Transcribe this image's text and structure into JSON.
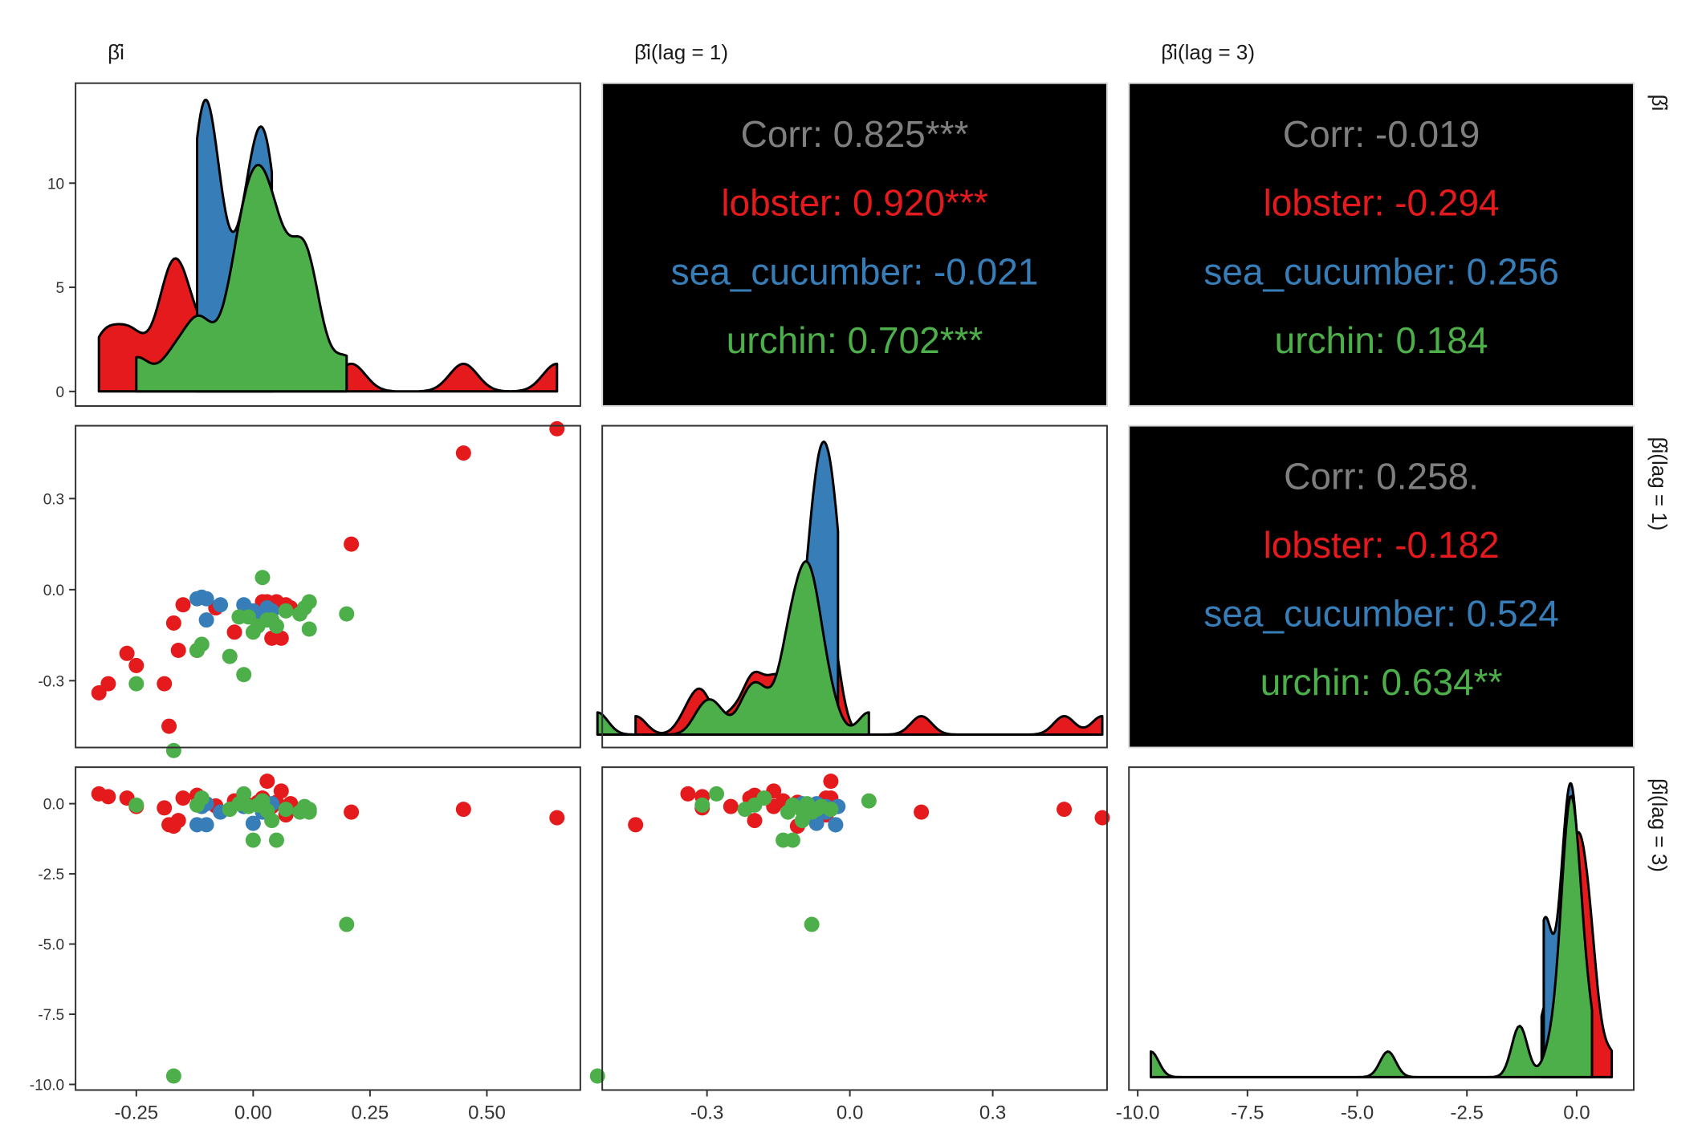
{
  "chart_data": {
    "type": "pairs",
    "groups": [
      {
        "name": "lobster",
        "color": "#E41A1C"
      },
      {
        "name": "sea_cucumber",
        "color": "#377EB8"
      },
      {
        "name": "urchin",
        "color": "#4DAF4A"
      }
    ],
    "variables": [
      {
        "label": "β̂i",
        "lim": [
          -0.38,
          0.7
        ],
        "ticks": [
          "-0.25",
          "0.00",
          "0.25",
          "0.50"
        ],
        "tick_values": [
          -0.25,
          0,
          0.25,
          0.5
        ]
      },
      {
        "label": "β̂i(lag = 1)",
        "lim": [
          -0.52,
          0.54
        ],
        "ticks": [
          "-0.3",
          "0.0",
          "0.3"
        ],
        "tick_values": [
          -0.3,
          0,
          0.3
        ]
      },
      {
        "label": "β̂i(lag = 3)",
        "lim": [
          -10.2,
          1.3
        ],
        "ticks": [
          "-10.0",
          "-7.5",
          "-5.0",
          "-2.5",
          "0.0"
        ],
        "tick_values": [
          -10,
          -7.5,
          -5,
          -2.5,
          0
        ]
      }
    ],
    "density_y": {
      "lim": [
        -0.7,
        14.8
      ],
      "ticks": [
        "0",
        "5",
        "10"
      ],
      "tick_values": [
        0,
        5,
        10
      ]
    },
    "correlations": [
      {
        "pair": "beta_vs_lag1",
        "overall": "Corr: 0.825***",
        "lobster": "lobster: 0.920***",
        "sea_cucumber": "sea_cucumber: -0.021",
        "urchin": "urchin: 0.702***"
      },
      {
        "pair": "beta_vs_lag3",
        "overall": "Corr: -0.019",
        "lobster": "lobster: -0.294",
        "sea_cucumber": "sea_cucumber: 0.256",
        "urchin": "urchin: 0.184"
      },
      {
        "pair": "lag1_vs_lag3",
        "overall": "Corr: 0.258.",
        "lobster": "lobster: -0.182",
        "sea_cucumber": "sea_cucumber: 0.524",
        "urchin": "urchin: 0.634**"
      }
    ],
    "points": {
      "lobster": [
        [
          -0.33,
          -0.34,
          0.35
        ],
        [
          -0.31,
          -0.31,
          0.25
        ],
        [
          -0.27,
          -0.21,
          0.2
        ],
        [
          -0.25,
          -0.25,
          -0.1
        ],
        [
          -0.19,
          -0.31,
          -0.15
        ],
        [
          -0.18,
          -0.45,
          -0.75
        ],
        [
          -0.17,
          -0.11,
          -0.8
        ],
        [
          -0.16,
          -0.2,
          -0.6
        ],
        [
          -0.15,
          -0.05,
          0.2
        ],
        [
          -0.12,
          -0.2,
          0.3
        ],
        [
          -0.08,
          -0.06,
          -0.08
        ],
        [
          -0.04,
          -0.14,
          0.1
        ],
        [
          -0.01,
          -0.07,
          -0.05
        ],
        [
          0.01,
          -0.11,
          0.05
        ],
        [
          0.02,
          -0.04,
          0.2
        ],
        [
          0.03,
          -0.04,
          0.8
        ],
        [
          0.04,
          -0.16,
          -0.1
        ],
        [
          0.05,
          -0.04,
          0.05
        ],
        [
          0.06,
          -0.16,
          0.45
        ],
        [
          0.07,
          -0.05,
          -0.4
        ],
        [
          0.08,
          -0.06,
          0.0
        ],
        [
          0.21,
          0.15,
          -0.3
        ],
        [
          0.45,
          0.45,
          -0.2
        ],
        [
          0.65,
          0.53,
          -0.5
        ]
      ],
      "sea_cucumber": [
        [
          -0.12,
          -0.03,
          -0.75
        ],
        [
          -0.11,
          -0.025,
          -0.1
        ],
        [
          -0.1,
          -0.1,
          0.0
        ],
        [
          -0.1,
          -0.03,
          -0.75
        ],
        [
          -0.07,
          -0.05,
          -0.3
        ],
        [
          -0.02,
          -0.05,
          -0.1
        ],
        [
          0.0,
          -0.07,
          -0.7
        ],
        [
          0.02,
          -0.08,
          -0.3
        ],
        [
          0.03,
          -0.06,
          -0.2
        ],
        [
          0.04,
          -0.07,
          0.0
        ]
      ],
      "urchin": [
        [
          -0.25,
          -0.31,
          -0.05
        ],
        [
          -0.17,
          -0.53,
          -9.7
        ],
        [
          -0.12,
          -0.2,
          -0.05
        ],
        [
          -0.11,
          -0.18,
          0.2
        ],
        [
          -0.05,
          -0.22,
          -0.2
        ],
        [
          -0.03,
          -0.09,
          0.0
        ],
        [
          -0.02,
          -0.28,
          0.35
        ],
        [
          -0.01,
          -0.09,
          -0.1
        ],
        [
          0.0,
          -0.14,
          -1.3
        ],
        [
          0.01,
          -0.12,
          -0.05
        ],
        [
          0.02,
          0.04,
          0.1
        ],
        [
          0.03,
          -0.1,
          -0.25
        ],
        [
          0.04,
          -0.1,
          -0.6
        ],
        [
          0.05,
          -0.12,
          -1.3
        ],
        [
          0.07,
          -0.07,
          -0.2
        ],
        [
          0.1,
          -0.08,
          -0.3
        ],
        [
          0.11,
          -0.06,
          -0.1
        ],
        [
          0.12,
          -0.04,
          -0.2
        ],
        [
          0.12,
          -0.13,
          -0.3
        ],
        [
          0.2,
          -0.08,
          -4.3
        ]
      ]
    }
  }
}
